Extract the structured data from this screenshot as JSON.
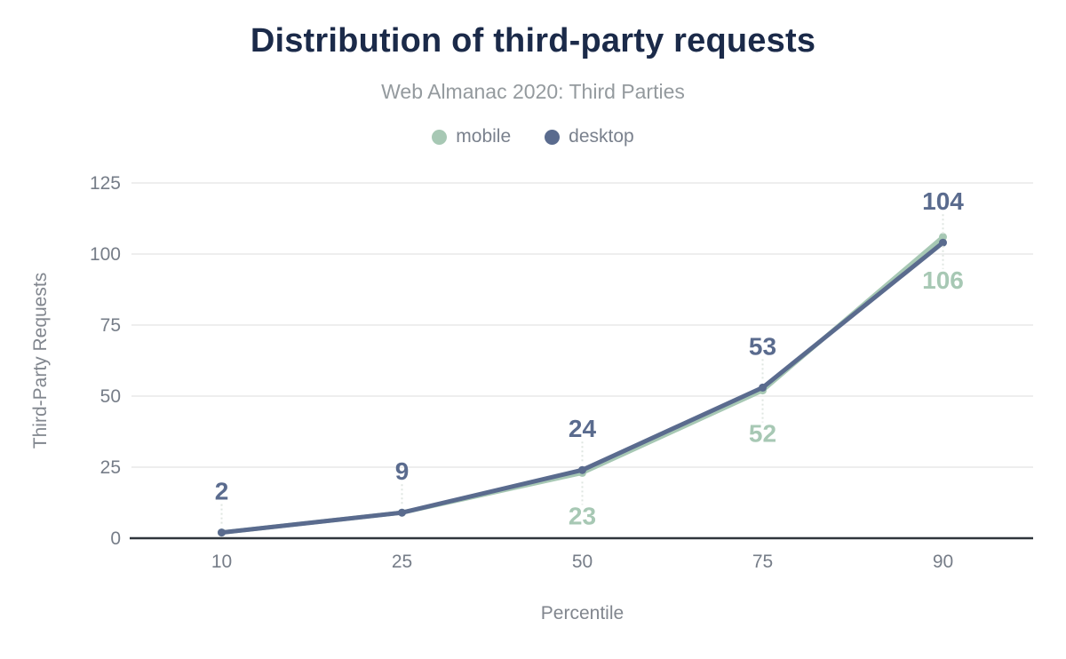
{
  "header": {
    "title": "Distribution of third-party requests",
    "subtitle": "Web Almanac 2020: Third Parties"
  },
  "colors": {
    "title": "#1b2a49",
    "subtitle": "#949a9e",
    "axis_text": "#767d88",
    "axis_title_text": "#81868e",
    "grid": "#eeeeee",
    "axis_line": "#2f353c",
    "leader": "#dfe6e1",
    "background": "#ffffff"
  },
  "chart_data": {
    "type": "line",
    "x_categories": [
      "10",
      "25",
      "50",
      "75",
      "90"
    ],
    "xlabel": "Percentile",
    "ylabel": "Third-Party Requests",
    "ylim": [
      0,
      125
    ],
    "yticks": [
      0,
      25,
      50,
      75,
      100,
      125
    ],
    "grid": "horizontal gridlines on, vertical off",
    "legend_position": "top",
    "title": "Distribution of third-party requests",
    "subtitle": "Web Almanac 2020: Third Parties",
    "series": [
      {
        "name": "mobile",
        "color": "#a7c8b4",
        "values": [
          2,
          9,
          23,
          52,
          106
        ],
        "data_labels": [
          null,
          null,
          "23",
          "52",
          "106"
        ],
        "label_side": "below"
      },
      {
        "name": "desktop",
        "color": "#5a6b8e",
        "values": [
          2,
          9,
          24,
          53,
          104
        ],
        "data_labels": [
          "2",
          "9",
          "24",
          "53",
          "104"
        ],
        "label_side": "above"
      }
    ]
  }
}
